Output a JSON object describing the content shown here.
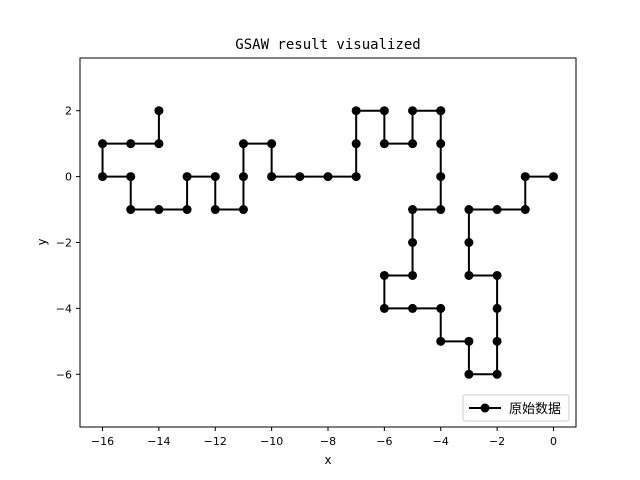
{
  "chart_data": {
    "type": "line",
    "title": "GSAW result visualized",
    "xlabel": "x",
    "ylabel": "y",
    "xlim": [
      -16.8,
      0.8
    ],
    "ylim": [
      -7.6,
      3.6
    ],
    "xticks": [
      -16,
      -14,
      -12,
      -10,
      -8,
      -6,
      -4,
      -2,
      0
    ],
    "yticks": [
      -6,
      -4,
      -2,
      0,
      2
    ],
    "grid": false,
    "legend_position": "lower-right",
    "series": [
      {
        "name": "原始数据",
        "color": "#000000",
        "marker": "circle",
        "x": [
          0,
          -1,
          -1,
          -2,
          -3,
          -3,
          -3,
          -2,
          -2,
          -2,
          -2,
          -3,
          -3,
          -4,
          -4,
          -5,
          -6,
          -6,
          -5,
          -5,
          -5,
          -4,
          -4,
          -4,
          -4,
          -4,
          -5,
          -5,
          -6,
          -6,
          -7,
          -7,
          -7,
          -8,
          -9,
          -10,
          -10,
          -11,
          -11,
          -11,
          -12,
          -12,
          -13,
          -13,
          -14,
          -15,
          -15,
          -16,
          -16,
          -15,
          -14,
          -14
        ],
        "y": [
          0,
          0,
          -1,
          -1,
          -1,
          -2,
          -3,
          -3,
          -4,
          -5,
          -6,
          -6,
          -5,
          -5,
          -4,
          -4,
          -4,
          -3,
          -3,
          -2,
          -1,
          -1,
          0,
          1,
          2,
          2,
          2,
          1,
          1,
          2,
          2,
          1,
          0,
          0,
          0,
          0,
          1,
          1,
          0,
          -1,
          -1,
          0,
          0,
          -1,
          -1,
          -1,
          0,
          0,
          1,
          1,
          1,
          2
        ]
      }
    ]
  }
}
